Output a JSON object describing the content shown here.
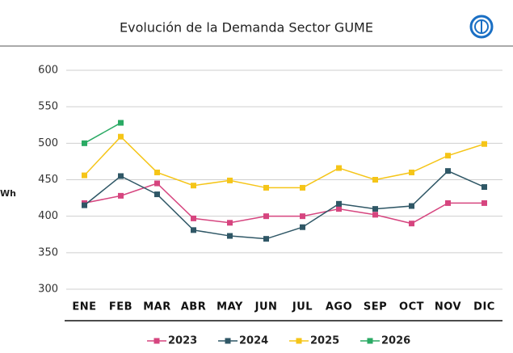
{
  "chart_data": {
    "type": "line",
    "title": "Evolución de la Demanda Sector GUME",
    "y_label": "Wh",
    "categories": [
      "ENE",
      "FEB",
      "MAR",
      "ABR",
      "MAY",
      "JUN",
      "JUL",
      "AGO",
      "SEP",
      "OCT",
      "NOV",
      "DIC"
    ],
    "series": [
      {
        "name": "2023",
        "color": "#d6457f",
        "values": [
          418,
          428,
          445,
          397,
          391,
          400,
          400,
          410,
          402,
          390,
          418,
          418
        ]
      },
      {
        "name": "2024",
        "color": "#2f5766",
        "values": [
          415,
          455,
          430,
          381,
          373,
          369,
          385,
          417,
          410,
          414,
          462,
          440
        ]
      },
      {
        "name": "2025",
        "color": "#f5c518",
        "values": [
          456,
          509,
          460,
          442,
          449,
          439,
          439,
          466,
          450,
          460,
          483,
          499
        ]
      },
      {
        "name": "2026",
        "color": "#2aaa64",
        "values": [
          500,
          528,
          null,
          null,
          null,
          null,
          null,
          null,
          null,
          null,
          null,
          null
        ]
      }
    ],
    "ylim": [
      300,
      600
    ],
    "yticks": [
      300,
      350,
      400,
      450,
      500,
      550,
      600
    ],
    "grid": true
  }
}
